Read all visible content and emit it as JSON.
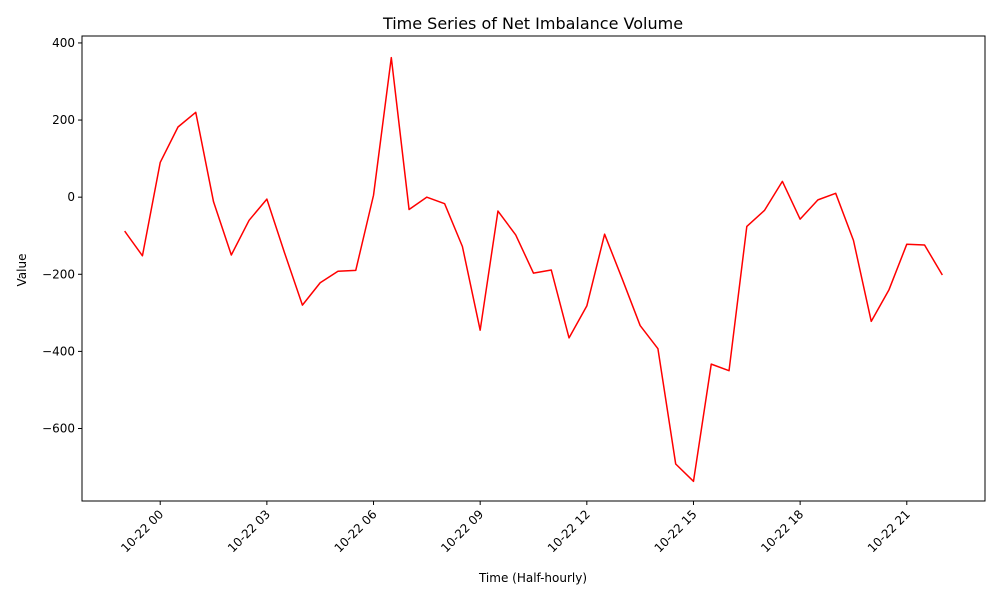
{
  "chart_data": {
    "type": "line",
    "title": "Time Series of Net Imbalance Volume",
    "xlabel": "Time (Half-hourly)",
    "ylabel": "Value",
    "x_tick_labels": [
      "10-22 00",
      "10-22 03",
      "10-22 06",
      "10-22 09",
      "10-22 12",
      "10-22 15",
      "10-22 18",
      "10-22 21"
    ],
    "y_ticks": [
      400,
      200,
      0,
      -200,
      -400,
      -600
    ],
    "y_tick_labels": [
      "400",
      "200",
      "0",
      "−200",
      "−400",
      "−600"
    ],
    "ylim": [
      -788,
      418
    ],
    "xlim_hours": [
      -2.2,
      23.2
    ],
    "grid": false,
    "legend": "none",
    "series": [
      {
        "color": "#ff0000",
        "x_hours": [
          -1,
          -0.5,
          0,
          0.5,
          1,
          1.5,
          2,
          2.5,
          3,
          3.5,
          4,
          4.5,
          5,
          5.5,
          6,
          6.5,
          7,
          7.5,
          8,
          8.5,
          9,
          9.5,
          10,
          10.5,
          11,
          11.5,
          12,
          12.5,
          13,
          13.5,
          14,
          14.5,
          15,
          15.5,
          16,
          16.5,
          17,
          17.5,
          18,
          18.5,
          19,
          19.5,
          20,
          20.5,
          21,
          21.5,
          22
        ],
        "values": [
          -88,
          -152,
          90,
          182,
          220,
          -12,
          -150,
          -60,
          -5,
          -145,
          -280,
          -222,
          -192,
          -190,
          5,
          362,
          -32,
          0,
          -17,
          -128,
          -345,
          -36,
          -98,
          -197,
          -189,
          -365,
          -282,
          -96,
          -213,
          -333,
          -393,
          -692,
          -737,
          -433,
          -450,
          -76,
          -34,
          41,
          -57,
          -7,
          10,
          -112,
          -322,
          -240,
          -122,
          -124,
          -202
        ]
      }
    ]
  }
}
